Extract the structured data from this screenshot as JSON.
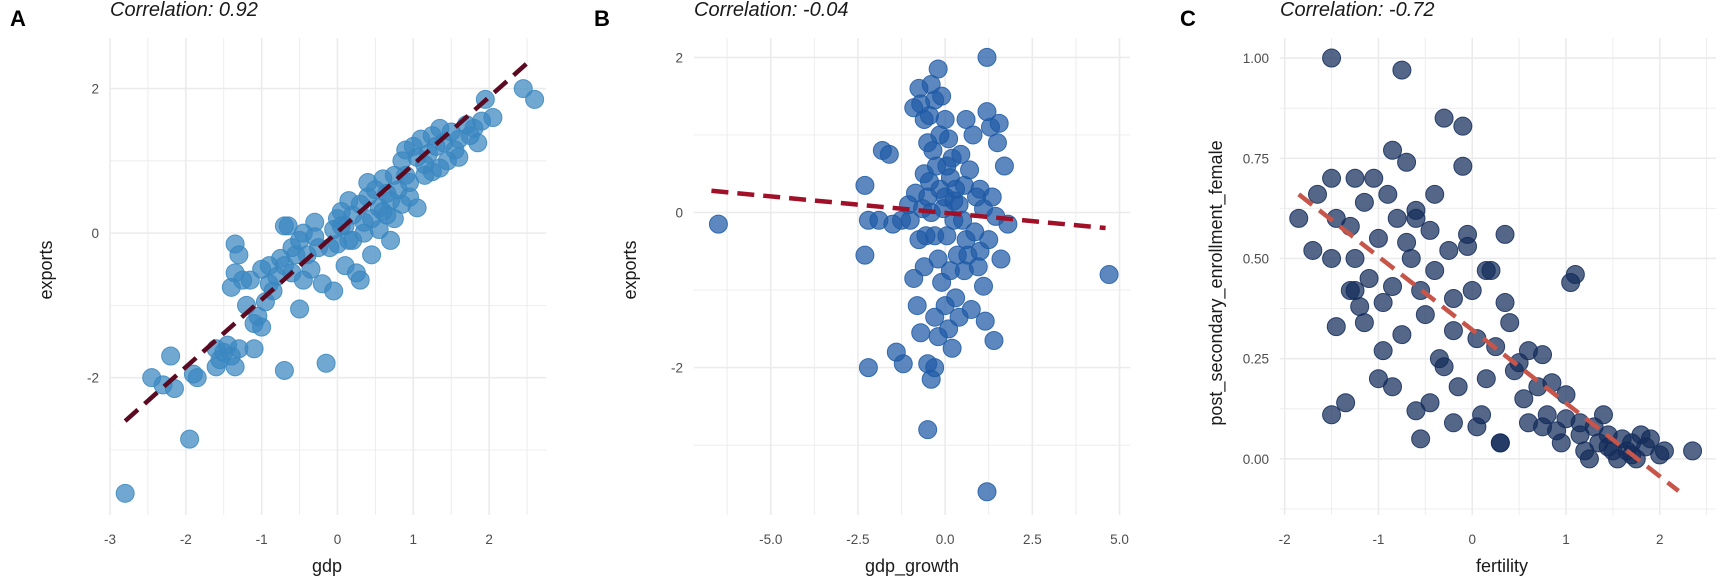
{
  "chart_data": [
    {
      "panel_label": "A",
      "type": "scatter",
      "title": "Correlation: 0.92",
      "xlabel": "gdp",
      "ylabel": "exports",
      "xlim": [
        -3.0,
        2.75
      ],
      "ylim": [
        -3.9,
        2.7
      ],
      "xticks": [
        -3,
        -2,
        -1,
        0,
        1,
        2
      ],
      "xtick_labels": [
        "-3",
        "-2",
        "-1",
        "0",
        "1",
        "2"
      ],
      "yticks": [
        -2,
        0,
        2
      ],
      "ytick_labels": [
        "-2",
        "0",
        "2"
      ],
      "grid": true,
      "point_color": "#3a87c0",
      "trend_color": "#5c0a22",
      "trend": {
        "x": [
          -2.8,
          2.5
        ],
        "y": [
          -2.6,
          2.35
        ]
      },
      "points": [
        [
          -2.8,
          -3.6
        ],
        [
          -1.95,
          -2.85
        ],
        [
          -2.45,
          -2.0
        ],
        [
          -2.3,
          -2.1
        ],
        [
          -2.2,
          -1.7
        ],
        [
          -2.15,
          -2.15
        ],
        [
          -1.9,
          -1.95
        ],
        [
          -1.85,
          -2.0
        ],
        [
          -1.6,
          -1.6
        ],
        [
          -1.55,
          -1.75
        ],
        [
          -1.5,
          -1.65
        ],
        [
          -1.45,
          -1.55
        ],
        [
          -1.4,
          -1.7
        ],
        [
          -1.35,
          -1.85
        ],
        [
          -1.3,
          -1.6
        ],
        [
          -1.35,
          -0.15
        ],
        [
          -1.3,
          -0.3
        ],
        [
          -1.35,
          -0.55
        ],
        [
          -1.4,
          -0.75
        ],
        [
          -1.25,
          -0.65
        ],
        [
          -1.2,
          -1.0
        ],
        [
          -1.1,
          -1.25
        ],
        [
          -1.05,
          -1.15
        ],
        [
          -1.0,
          -1.3
        ],
        [
          -0.95,
          -0.95
        ],
        [
          -1.0,
          -0.5
        ],
        [
          -0.9,
          -0.45
        ],
        [
          -0.85,
          -0.8
        ],
        [
          -0.8,
          -0.6
        ],
        [
          -0.75,
          -0.35
        ],
        [
          -0.7,
          -0.45
        ],
        [
          -0.6,
          -0.55
        ],
        [
          -0.5,
          -1.05
        ],
        [
          -0.45,
          -0.65
        ],
        [
          -0.7,
          -1.9
        ],
        [
          -0.55,
          -0.3
        ],
        [
          -0.5,
          -0.1
        ],
        [
          -0.4,
          -0.3
        ],
        [
          -0.7,
          0.1
        ],
        [
          -0.65,
          0.1
        ],
        [
          -0.45,
          0.0
        ],
        [
          -0.3,
          -0.05
        ],
        [
          -0.35,
          -0.5
        ],
        [
          -0.2,
          -0.7
        ],
        [
          -0.1,
          -0.2
        ],
        [
          -0.05,
          0.05
        ],
        [
          0.0,
          0.2
        ],
        [
          0.05,
          0.3
        ],
        [
          0.1,
          0.1
        ],
        [
          0.15,
          -0.1
        ],
        [
          0.2,
          0.25
        ],
        [
          0.3,
          0.4
        ],
        [
          0.35,
          0.15
        ],
        [
          0.4,
          0.5
        ],
        [
          0.45,
          0.2
        ],
        [
          0.5,
          0.6
        ],
        [
          0.55,
          0.35
        ],
        [
          0.6,
          0.75
        ],
        [
          0.65,
          0.55
        ],
        [
          0.7,
          0.45
        ],
        [
          0.75,
          0.8
        ],
        [
          0.8,
          0.6
        ],
        [
          0.85,
          1.0
        ],
        [
          0.9,
          0.8
        ],
        [
          0.95,
          0.7
        ],
        [
          1.0,
          1.2
        ],
        [
          1.05,
          1.05
        ],
        [
          1.1,
          1.3
        ],
        [
          1.15,
          0.95
        ],
        [
          1.2,
          1.1
        ],
        [
          1.25,
          1.35
        ],
        [
          1.3,
          1.2
        ],
        [
          1.35,
          1.45
        ],
        [
          1.4,
          1.25
        ],
        [
          1.5,
          1.4
        ],
        [
          1.55,
          1.15
        ],
        [
          1.6,
          1.3
        ],
        [
          1.7,
          1.5
        ],
        [
          1.75,
          1.35
        ],
        [
          1.8,
          1.45
        ],
        [
          1.9,
          1.55
        ],
        [
          1.95,
          1.85
        ],
        [
          2.05,
          1.6
        ],
        [
          2.45,
          2.0
        ],
        [
          2.6,
          1.85
        ],
        [
          0.25,
          -0.55
        ],
        [
          0.3,
          -0.65
        ],
        [
          0.45,
          -0.3
        ],
        [
          0.7,
          -0.1
        ],
        [
          0.75,
          0.2
        ],
        [
          1.05,
          0.35
        ],
        [
          1.15,
          0.8
        ],
        [
          -0.15,
          -1.8
        ],
        [
          -0.05,
          -0.8
        ],
        [
          0.1,
          -0.45
        ],
        [
          0.2,
          -0.1
        ],
        [
          0.55,
          0.05
        ],
        [
          0.85,
          0.4
        ],
        [
          1.25,
          0.85
        ],
        [
          1.45,
          1.0
        ],
        [
          0.6,
          0.3
        ],
        [
          0.95,
          0.5
        ],
        [
          -0.25,
          -0.2
        ],
        [
          0.05,
          0.1
        ],
        [
          0.15,
          0.45
        ],
        [
          0.4,
          0.7
        ],
        [
          0.9,
          1.15
        ],
        [
          1.6,
          1.05
        ],
        [
          -0.6,
          -0.2
        ],
        [
          -0.3,
          0.15
        ],
        [
          0.0,
          -0.15
        ],
        [
          0.35,
          0.0
        ],
        [
          0.65,
          0.25
        ],
        [
          -0.9,
          -0.7
        ],
        [
          -1.15,
          -0.65
        ],
        [
          -1.6,
          -1.85
        ],
        [
          -1.1,
          -1.6
        ],
        [
          1.35,
          0.9
        ],
        [
          1.85,
          1.25
        ]
      ]
    },
    {
      "panel_label": "B",
      "type": "scatter",
      "title": "Correlation: -0.04",
      "xlabel": "gdp_growth",
      "ylabel": "exports",
      "xlim": [
        -7.2,
        5.3
      ],
      "ylim": [
        -3.9,
        2.25
      ],
      "xticks": [
        -5.0,
        -2.5,
        0.0,
        2.5,
        5.0
      ],
      "xtick_labels": [
        "-5.0",
        "-2.5",
        "0.0",
        "2.5",
        "5.0"
      ],
      "yticks": [
        -2,
        0,
        2
      ],
      "ytick_labels": [
        "-2",
        "0",
        "2"
      ],
      "grid": true,
      "point_color": "#1f5aa6",
      "trend_color": "#a01028",
      "trend": {
        "x": [
          -6.7,
          4.6
        ],
        "y": [
          0.28,
          -0.2
        ]
      },
      "points": [
        [
          -6.5,
          -0.15
        ],
        [
          4.7,
          -0.8
        ],
        [
          1.2,
          -3.6
        ],
        [
          -0.5,
          -2.8
        ],
        [
          1.2,
          2.0
        ],
        [
          -2.3,
          0.35
        ],
        [
          -2.2,
          -0.1
        ],
        [
          -2.3,
          -0.55
        ],
        [
          -2.2,
          -2.0
        ],
        [
          -1.8,
          0.8
        ],
        [
          -1.6,
          0.75
        ],
        [
          -1.4,
          -1.8
        ],
        [
          -1.2,
          -1.95
        ],
        [
          -1.0,
          -0.1
        ],
        [
          -0.9,
          -0.85
        ],
        [
          -0.8,
          -1.2
        ],
        [
          -0.75,
          1.6
        ],
        [
          -0.7,
          1.4
        ],
        [
          -0.6,
          1.2
        ],
        [
          -0.5,
          0.9
        ],
        [
          -0.4,
          1.65
        ],
        [
          -0.3,
          1.45
        ],
        [
          -0.2,
          1.85
        ],
        [
          -0.1,
          1.5
        ],
        [
          0.0,
          1.2
        ],
        [
          0.1,
          0.95
        ],
        [
          0.2,
          0.7
        ],
        [
          -0.6,
          0.5
        ],
        [
          -0.5,
          0.2
        ],
        [
          -0.4,
          0.0
        ],
        [
          -0.3,
          -0.3
        ],
        [
          -0.2,
          -0.6
        ],
        [
          -0.1,
          -0.9
        ],
        [
          0.0,
          -1.2
        ],
        [
          0.1,
          -1.5
        ],
        [
          0.2,
          -1.75
        ],
        [
          -0.7,
          -1.55
        ],
        [
          -0.5,
          -1.95
        ],
        [
          -0.4,
          -2.15
        ],
        [
          -0.3,
          -2.0
        ],
        [
          -0.2,
          -1.6
        ],
        [
          0.3,
          0.3
        ],
        [
          0.4,
          0.1
        ],
        [
          0.5,
          -0.1
        ],
        [
          0.6,
          -0.35
        ],
        [
          0.7,
          0.55
        ],
        [
          0.8,
          1.0
        ],
        [
          0.9,
          0.2
        ],
        [
          1.0,
          -0.5
        ],
        [
          1.1,
          -0.95
        ],
        [
          1.2,
          1.3
        ],
        [
          1.3,
          1.1
        ],
        [
          1.4,
          -1.65
        ],
        [
          1.5,
          0.9
        ],
        [
          1.6,
          -0.6
        ],
        [
          1.7,
          0.6
        ],
        [
          1.8,
          -0.15
        ],
        [
          0.3,
          -1.1
        ],
        [
          0.4,
          -1.35
        ],
        [
          0.55,
          -0.75
        ],
        [
          0.65,
          -0.55
        ],
        [
          0.75,
          -1.25
        ],
        [
          0.85,
          -0.25
        ],
        [
          1.0,
          0.3
        ],
        [
          1.1,
          0.05
        ],
        [
          1.25,
          -0.35
        ],
        [
          1.35,
          0.2
        ],
        [
          1.45,
          -0.05
        ],
        [
          -0.25,
          0.6
        ],
        [
          -0.15,
          0.3
        ],
        [
          -0.05,
          0.05
        ],
        [
          0.05,
          -0.3
        ],
        [
          0.15,
          0.45
        ],
        [
          0.25,
          0.15
        ],
        [
          0.35,
          -0.55
        ],
        [
          0.45,
          0.75
        ],
        [
          -0.65,
          0.05
        ],
        [
          -0.55,
          -0.3
        ],
        [
          -0.45,
          0.4
        ],
        [
          -0.35,
          0.8
        ],
        [
          -0.15,
          1.0
        ],
        [
          0.05,
          0.6
        ],
        [
          0.15,
          -0.75
        ],
        [
          -0.85,
          0.25
        ],
        [
          -1.05,
          0.1
        ],
        [
          -1.25,
          -0.1
        ],
        [
          -1.5,
          -0.15
        ],
        [
          -1.9,
          -0.1
        ],
        [
          0.55,
          0.35
        ],
        [
          0.95,
          -0.7
        ],
        [
          1.15,
          -1.4
        ],
        [
          -0.75,
          -0.35
        ],
        [
          -0.6,
          -0.7
        ],
        [
          -0.3,
          -1.35
        ],
        [
          0.0,
          0.2
        ],
        [
          0.25,
          -0.1
        ],
        [
          0.6,
          1.2
        ],
        [
          1.55,
          1.15
        ],
        [
          -0.45,
          1.25
        ],
        [
          -0.9,
          1.35
        ]
      ]
    },
    {
      "panel_label": "C",
      "type": "scatter",
      "title": "Correlation: -0.72",
      "xlabel": "fertility",
      "ylabel": "post_secondary_enrollment_female",
      "xlim": [
        -2.05,
        2.6
      ],
      "ylim": [
        -0.14,
        1.05
      ],
      "xticks": [
        -2,
        -1,
        0,
        1,
        2
      ],
      "xtick_labels": [
        "-2",
        "-1",
        "0",
        "1",
        "2"
      ],
      "yticks": [
        0.0,
        0.25,
        0.5,
        0.75,
        1.0
      ],
      "ytick_labels": [
        "0.00",
        "0.25",
        "0.50",
        "0.75",
        "1.00"
      ],
      "grid": true,
      "point_color": "#142c5a",
      "trend_color": "#c8554a",
      "trend": {
        "x": [
          -1.85,
          2.2
        ],
        "y": [
          0.66,
          -0.08
        ]
      },
      "points": [
        [
          -1.85,
          0.6
        ],
        [
          -1.7,
          0.52
        ],
        [
          -1.65,
          0.66
        ],
        [
          -1.5,
          1.0
        ],
        [
          -1.5,
          0.7
        ],
        [
          -1.45,
          0.6
        ],
        [
          -1.5,
          0.5
        ],
        [
          -1.45,
          0.33
        ],
        [
          -1.5,
          0.11
        ],
        [
          -1.35,
          0.14
        ],
        [
          -1.3,
          0.58
        ],
        [
          -1.25,
          0.7
        ],
        [
          -1.25,
          0.5
        ],
        [
          -1.2,
          0.38
        ],
        [
          -1.15,
          0.64
        ],
        [
          -1.1,
          0.45
        ],
        [
          -1.05,
          0.7
        ],
        [
          -1.0,
          0.55
        ],
        [
          -0.95,
          0.39
        ],
        [
          -0.9,
          0.66
        ],
        [
          -0.85,
          0.77
        ],
        [
          -0.8,
          0.6
        ],
        [
          -0.75,
          0.97
        ],
        [
          -0.75,
          0.31
        ],
        [
          -0.7,
          0.74
        ],
        [
          -0.65,
          0.5
        ],
        [
          -0.6,
          0.62
        ],
        [
          -0.55,
          0.42
        ],
        [
          -0.5,
          0.36
        ],
        [
          -0.45,
          0.57
        ],
        [
          -0.4,
          0.47
        ],
        [
          -0.35,
          0.25
        ],
        [
          -0.3,
          0.85
        ],
        [
          -0.25,
          0.52
        ],
        [
          -0.2,
          0.4
        ],
        [
          -0.15,
          0.18
        ],
        [
          -0.1,
          0.83
        ],
        [
          -0.1,
          0.73
        ],
        [
          -0.05,
          0.56
        ],
        [
          0.0,
          0.42
        ],
        [
          0.05,
          0.3
        ],
        [
          0.1,
          0.11
        ],
        [
          0.15,
          0.2
        ],
        [
          0.2,
          0.47
        ],
        [
          0.25,
          0.28
        ],
        [
          0.3,
          0.04
        ],
        [
          0.35,
          0.56
        ],
        [
          0.4,
          0.34
        ],
        [
          0.45,
          0.22
        ],
        [
          0.5,
          0.24
        ],
        [
          0.55,
          0.15
        ],
        [
          0.6,
          0.09
        ],
        [
          0.7,
          0.18
        ],
        [
          0.75,
          0.26
        ],
        [
          0.8,
          0.11
        ],
        [
          0.85,
          0.19
        ],
        [
          0.9,
          0.07
        ],
        [
          0.95,
          0.04
        ],
        [
          1.0,
          0.1
        ],
        [
          1.05,
          0.44
        ],
        [
          1.1,
          0.46
        ],
        [
          1.15,
          0.06
        ],
        [
          1.2,
          0.02
        ],
        [
          1.25,
          0.0
        ],
        [
          1.3,
          0.08
        ],
        [
          1.35,
          0.04
        ],
        [
          1.4,
          0.11
        ],
        [
          1.45,
          0.06
        ],
        [
          1.5,
          0.02
        ],
        [
          1.55,
          0.0
        ],
        [
          1.6,
          0.05
        ],
        [
          1.65,
          0.02
        ],
        [
          1.7,
          0.04
        ],
        [
          1.75,
          0.0
        ],
        [
          1.8,
          0.06
        ],
        [
          1.85,
          0.03
        ],
        [
          1.9,
          0.05
        ],
        [
          2.0,
          0.01
        ],
        [
          2.05,
          0.02
        ],
        [
          2.35,
          0.02
        ],
        [
          -1.3,
          0.42
        ],
        [
          -1.15,
          0.34
        ],
        [
          -1.0,
          0.2
        ],
        [
          -0.85,
          0.18
        ],
        [
          -0.6,
          0.12
        ],
        [
          -0.45,
          0.14
        ],
        [
          -0.3,
          0.23
        ],
        [
          -0.2,
          0.09
        ],
        [
          0.05,
          0.08
        ],
        [
          -0.55,
          0.05
        ],
        [
          -0.95,
          0.27
        ],
        [
          -0.7,
          0.54
        ],
        [
          -0.4,
          0.66
        ],
        [
          -0.2,
          0.32
        ],
        [
          0.35,
          0.39
        ],
        [
          0.6,
          0.27
        ],
        [
          1.0,
          0.16
        ],
        [
          1.45,
          0.03
        ],
        [
          0.3,
          0.04
        ],
        [
          0.15,
          0.47
        ],
        [
          -0.05,
          0.53
        ],
        [
          -0.6,
          0.6
        ],
        [
          -0.85,
          0.43
        ],
        [
          -1.25,
          0.42
        ],
        [
          0.75,
          0.08
        ],
        [
          1.15,
          0.09
        ],
        [
          1.7,
          0.01
        ]
      ]
    }
  ]
}
